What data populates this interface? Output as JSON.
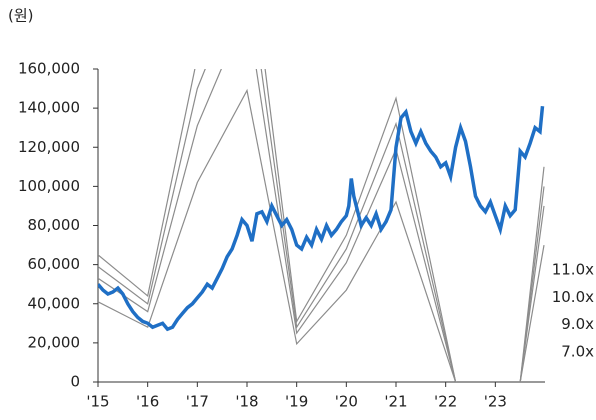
{
  "chart_data": {
    "type": "line",
    "y_axis_label": "(원)",
    "xlim": [
      2015,
      2024
    ],
    "xticks": [
      {
        "value": 2015,
        "label": "'15"
      },
      {
        "value": 2016,
        "label": "'16"
      },
      {
        "value": 2017,
        "label": "'17"
      },
      {
        "value": 2018,
        "label": "'18"
      },
      {
        "value": 2019,
        "label": "'19"
      },
      {
        "value": 2020,
        "label": "'20"
      },
      {
        "value": 2021,
        "label": "'21"
      },
      {
        "value": 2022,
        "label": "'22"
      },
      {
        "value": 2023,
        "label": "'23"
      }
    ],
    "ylim": [
      0,
      160000
    ],
    "yticks": [
      0,
      {
        "value": 20000,
        "label": "20,000"
      },
      {
        "value": 40000,
        "label": "40,000"
      },
      {
        "value": 60000,
        "label": "60,000"
      },
      {
        "value": 80000,
        "label": "80,000"
      },
      {
        "value": 100000,
        "label": "100,000"
      },
      {
        "value": 120000,
        "label": "120,000"
      },
      {
        "value": 140000,
        "label": "140,000"
      },
      {
        "value": 160000,
        "label": "160,000"
      }
    ],
    "series": [
      {
        "color": "#1f6fc5",
        "x": [
          2015,
          2015.1,
          2015.2,
          2015.3,
          2015.4,
          2015.5,
          2015.6,
          2015.7,
          2015.8,
          2015.9,
          2016,
          2016.1,
          2016.2,
          2016.3,
          2016.4,
          2016.5,
          2016.6,
          2016.7,
          2016.8,
          2016.9,
          2017,
          2017.1,
          2017.2,
          2017.3,
          2017.4,
          2017.5,
          2017.6,
          2017.7,
          2017.8,
          2017.9,
          2018,
          2018.1,
          2018.2,
          2018.3,
          2018.4,
          2018.5,
          2018.6,
          2018.7,
          2018.8,
          2018.9,
          2019,
          2019.1,
          2019.2,
          2019.3,
          2019.4,
          2019.5,
          2019.6,
          2019.7,
          2019.8,
          2019.9,
          2020,
          2020.05,
          2020.1,
          2020.15,
          2020.3,
          2020.4,
          2020.5,
          2020.6,
          2020.7,
          2020.8,
          2020.9,
          2021,
          2021.1,
          2021.2,
          2021.3,
          2021.4,
          2021.5,
          2021.6,
          2021.7,
          2021.8,
          2021.9,
          2022,
          2022.1,
          2022.2,
          2022.3,
          2022.4,
          2022.5,
          2022.6,
          2022.7,
          2022.8,
          2022.9,
          2023,
          2023.1,
          2023.2,
          2023.3,
          2023.4,
          2023.5,
          2023.6,
          2023.7,
          2023.8,
          2023.9,
          2023.95
        ],
        "values": [
          50000,
          47000,
          45000,
          46000,
          48000,
          45000,
          40000,
          36000,
          33000,
          31000,
          30000,
          28000,
          29000,
          30000,
          27000,
          28000,
          32000,
          35000,
          38000,
          40000,
          43000,
          46000,
          50000,
          48000,
          53000,
          58000,
          64000,
          68000,
          75000,
          83000,
          80000,
          72000,
          86000,
          87000,
          82000,
          90000,
          85000,
          80000,
          83000,
          78000,
          70000,
          68000,
          74000,
          70000,
          78000,
          73000,
          80000,
          75000,
          78000,
          82000,
          85000,
          90000,
          104000,
          95000,
          80000,
          84000,
          80000,
          86000,
          78000,
          82000,
          88000,
          120000,
          135000,
          138000,
          128000,
          122000,
          128000,
          122000,
          118000,
          115000,
          110000,
          112000,
          105000,
          120000,
          130000,
          123000,
          110000,
          95000,
          90000,
          87000,
          92000,
          85000,
          78000,
          90000,
          85000,
          88000,
          118000,
          115000,
          122000,
          130000,
          128000,
          141000
        ]
      },
      {
        "name": "11.0x",
        "color": "#8c8c8c",
        "x": [
          2015,
          2016,
          2017,
          2018,
          2019,
          2020,
          2021,
          2022.2,
          2022.9,
          2023.5,
          2023.98
        ],
        "values": [
          65000,
          44000,
          166000,
          234000,
          31000,
          75000,
          145000,
          0,
          null,
          0,
          110000
        ]
      },
      {
        "name": "10.0x",
        "color": "#8c8c8c",
        "x": [
          2015,
          2016,
          2017,
          2018,
          2019,
          2020,
          2021,
          2022.2,
          2022.9,
          2023.5,
          2023.98
        ],
        "values": [
          59000,
          40000,
          150000,
          213000,
          28000,
          68000,
          132000,
          0,
          null,
          0,
          100000
        ]
      },
      {
        "name": "9.0x",
        "color": "#8c8c8c",
        "x": [
          2015,
          2016,
          2017,
          2018,
          2019,
          2020,
          2021,
          2022.2,
          2022.9,
          2023.5,
          2023.98
        ],
        "values": [
          53000,
          36000,
          131000,
          191000,
          25000,
          61000,
          119000,
          0,
          null,
          0,
          90000
        ]
      },
      {
        "name": "7.0x",
        "color": "#8c8c8c",
        "x": [
          2015,
          2016,
          2017,
          2018,
          2019,
          2020,
          2021,
          2022.2,
          2022.9,
          2023.5,
          2023.98
        ],
        "values": [
          41000,
          28000,
          102000,
          149000,
          19500,
          47000,
          92000,
          0,
          null,
          0,
          70000
        ]
      }
    ]
  }
}
